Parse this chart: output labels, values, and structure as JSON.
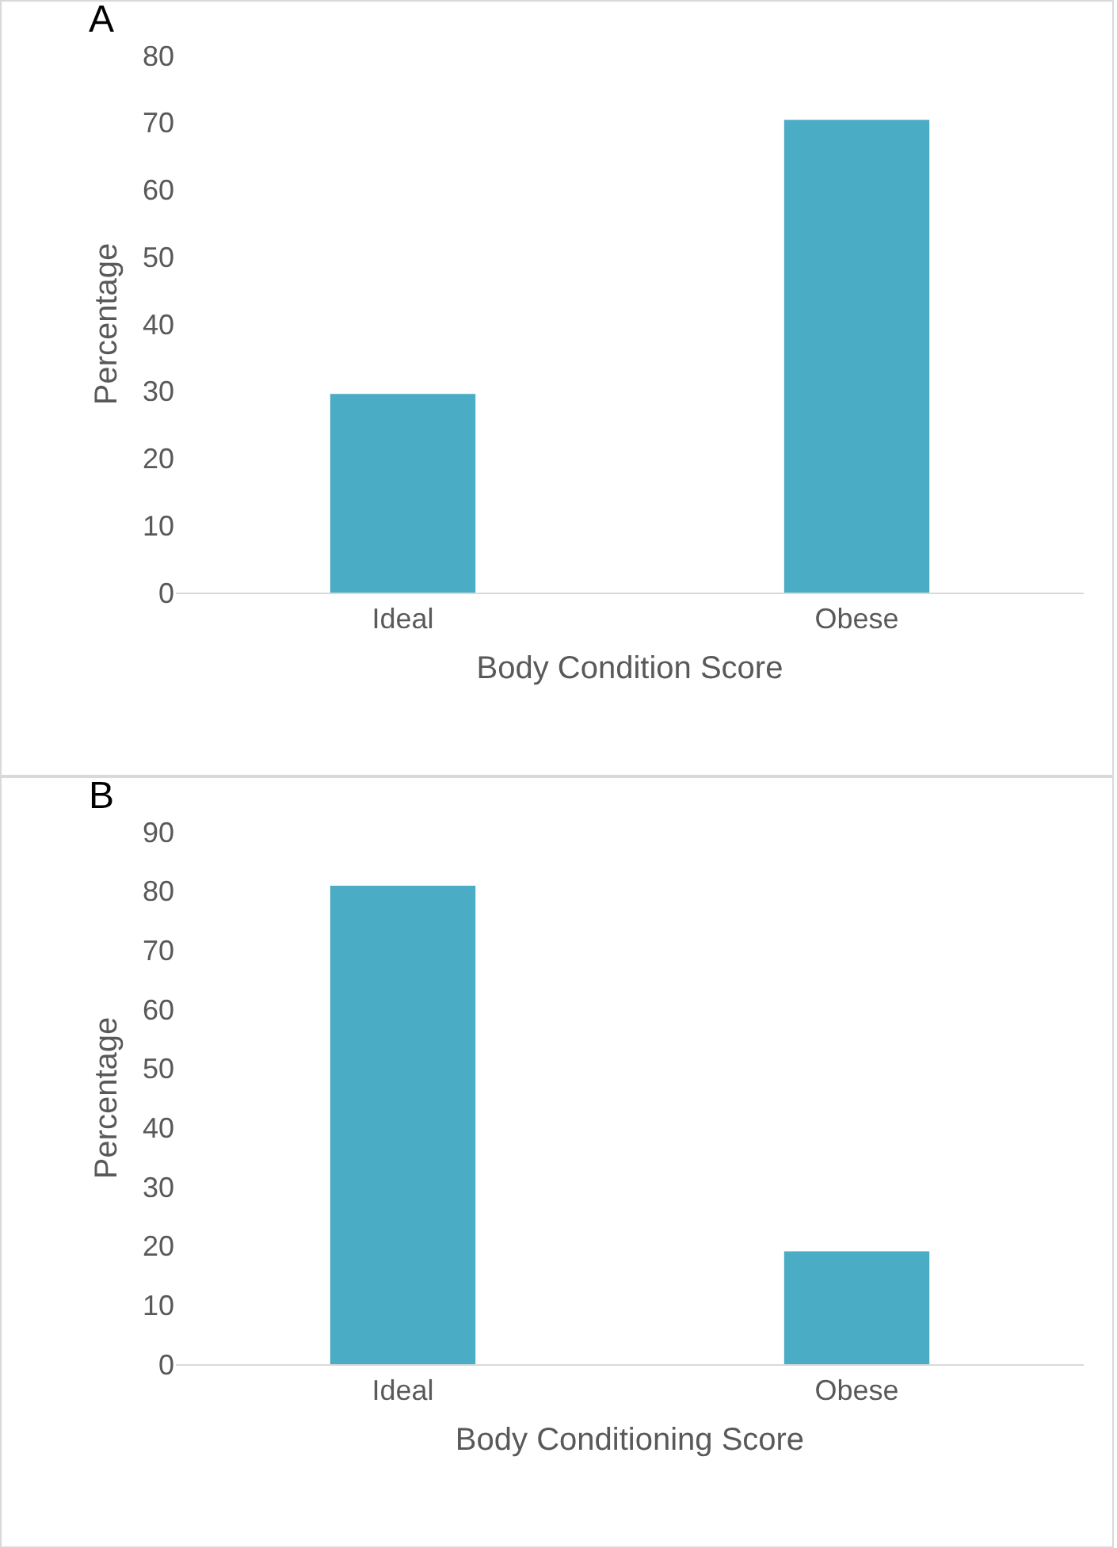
{
  "chart_data": [
    {
      "type": "bar",
      "annotations": [
        "A"
      ],
      "xlabel": "Body Condition Score",
      "ylabel": "Percentage",
      "categories": [
        "Ideal",
        "Obese"
      ],
      "values": [
        29.6,
        70.4
      ],
      "color": "#4bacc6",
      "ylim": [
        0,
        80
      ],
      "yticks": [
        0,
        10,
        20,
        30,
        40,
        50,
        60,
        70,
        80
      ],
      "grid": false
    },
    {
      "type": "bar",
      "annotations": [
        "B"
      ],
      "xlabel": "Body Conditioning Score",
      "ylabel": "Percentage",
      "categories": [
        "Ideal",
        "Obese"
      ],
      "values": [
        80.9,
        19.1
      ],
      "color": "#4bacc6",
      "ylim": [
        0,
        90
      ],
      "yticks": [
        0,
        10,
        20,
        30,
        40,
        50,
        60,
        70,
        80,
        90
      ],
      "grid": false
    }
  ]
}
